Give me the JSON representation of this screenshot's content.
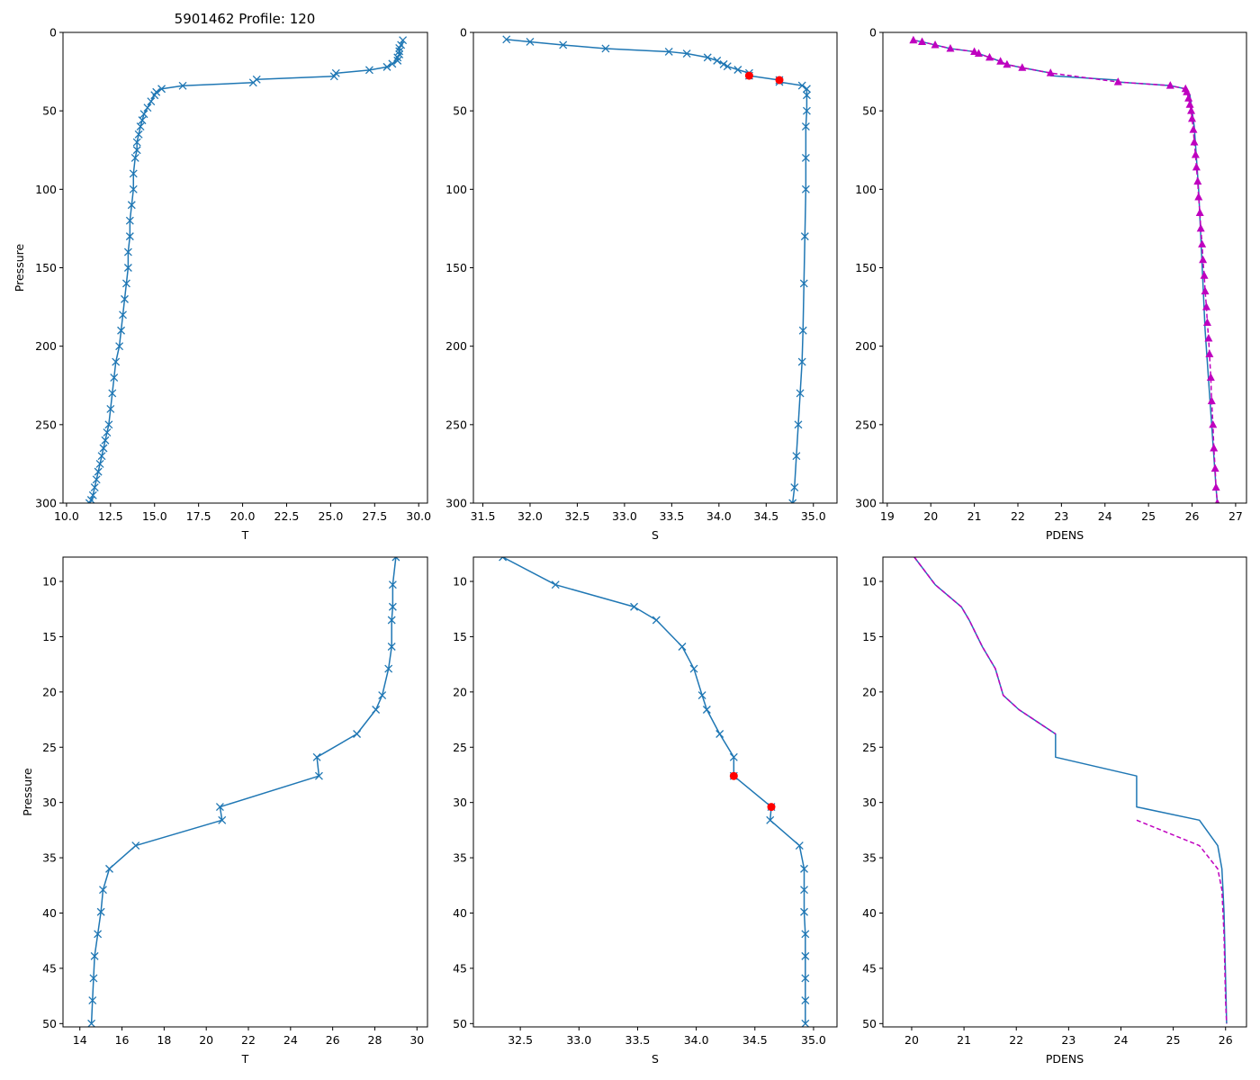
{
  "chart_data": [
    {
      "id": "top-T",
      "type": "line",
      "title": "5901462 Profile: 120",
      "xlabel": "T",
      "ylabel": "Pressure",
      "xlim": [
        9.8,
        30.5
      ],
      "ylim": [
        300,
        0
      ],
      "xticks": [
        10.0,
        12.5,
        15.0,
        17.5,
        20.0,
        22.5,
        25.0,
        27.5,
        30.0
      ],
      "xtick_labels": [
        "10.0",
        "12.5",
        "15.0",
        "17.5",
        "20.0",
        "22.5",
        "25.0",
        "27.5",
        "30.0"
      ],
      "yticks": [
        0,
        50,
        100,
        150,
        200,
        250,
        300
      ],
      "ytick_labels": [
        "0",
        "50",
        "100",
        "150",
        "200",
        "250",
        "300"
      ],
      "series": [
        {
          "name": "T",
          "color": "#1f77b4",
          "marker": "x",
          "dashed": false,
          "marker_color": "#1f77b4",
          "x": [
            29.1,
            29.0,
            28.9,
            28.9,
            28.9,
            28.8,
            28.8,
            28.5,
            28.2,
            27.2,
            25.3,
            25.2,
            20.8,
            20.6,
            16.6,
            15.4,
            15.1,
            15.0,
            14.8,
            14.6,
            14.4,
            14.3,
            14.2,
            14.1,
            14.0,
            14.0,
            13.9,
            13.8,
            13.8,
            13.7,
            13.6,
            13.6,
            13.5,
            13.5,
            13.4,
            13.3,
            13.2,
            13.1,
            13.0,
            12.8,
            12.7,
            12.6,
            12.5,
            12.4,
            12.3,
            12.2,
            12.1,
            12.0,
            11.9,
            11.8,
            11.7,
            11.6,
            11.5,
            11.4,
            11.3
          ],
          "y": [
            5,
            8,
            10,
            12,
            14,
            16,
            18,
            20,
            22,
            24,
            26,
            28,
            30,
            32,
            34,
            36,
            38,
            40,
            44,
            48,
            52,
            56,
            60,
            65,
            70,
            75,
            80,
            90,
            100,
            110,
            120,
            130,
            140,
            150,
            160,
            170,
            180,
            190,
            200,
            210,
            220,
            230,
            240,
            250,
            255,
            260,
            265,
            270,
            275,
            280,
            285,
            290,
            295,
            298,
            300
          ]
        }
      ],
      "points": []
    },
    {
      "id": "top-S",
      "type": "line",
      "title": "",
      "xlabel": "S",
      "ylabel": "",
      "xlim": [
        31.4,
        35.25
      ],
      "ylim": [
        300,
        0
      ],
      "xticks": [
        31.5,
        32.0,
        32.5,
        33.0,
        33.5,
        34.0,
        34.5,
        35.0
      ],
      "xtick_labels": [
        "31.5",
        "32.0",
        "32.5",
        "33.0",
        "33.5",
        "34.0",
        "34.5",
        "35.0"
      ],
      "yticks": [
        0,
        50,
        100,
        150,
        200,
        250,
        300
      ],
      "ytick_labels": [
        "0",
        "50",
        "100",
        "150",
        "200",
        "250",
        "300"
      ],
      "series": [
        {
          "name": "S",
          "color": "#1f77b4",
          "marker": "x",
          "dashed": false,
          "marker_color": "#1f77b4",
          "x": [
            31.75,
            32.0,
            32.35,
            32.8,
            33.47,
            33.66,
            33.88,
            33.98,
            34.05,
            34.09,
            34.2,
            34.32,
            34.32,
            34.64,
            34.64,
            34.88,
            34.93,
            34.93,
            34.93,
            34.92,
            34.92,
            34.92,
            34.91,
            34.9,
            34.89,
            34.88,
            34.86,
            34.84,
            34.82,
            34.8,
            34.78
          ],
          "y": [
            4.5,
            6,
            8,
            10.3,
            12.3,
            13.5,
            16,
            18,
            20.3,
            21.6,
            23.8,
            25.9,
            27.6,
            30.4,
            31.6,
            33.9,
            36,
            40,
            50,
            60,
            80,
            100,
            130,
            160,
            190,
            210,
            230,
            250,
            270,
            290,
            300
          ]
        }
      ],
      "points": [
        {
          "x": 34.32,
          "y": 27.6,
          "color": "#ff0000"
        },
        {
          "x": 34.64,
          "y": 30.4,
          "color": "#ff0000"
        }
      ]
    },
    {
      "id": "top-PDENS",
      "type": "line",
      "title": "",
      "xlabel": "PDENS",
      "ylabel": "",
      "xlim": [
        18.9,
        27.25
      ],
      "ylim": [
        300,
        0
      ],
      "xticks": [
        19,
        20,
        21,
        22,
        23,
        24,
        25,
        26,
        27
      ],
      "xtick_labels": [
        "19",
        "20",
        "21",
        "22",
        "23",
        "24",
        "25",
        "26",
        "27"
      ],
      "yticks": [
        0,
        50,
        100,
        150,
        200,
        250,
        300
      ],
      "ytick_labels": [
        "0",
        "50",
        "100",
        "150",
        "200",
        "250",
        "300"
      ],
      "series": [
        {
          "name": "PDENS",
          "color": "#1f77b4",
          "marker": "",
          "dashed": false,
          "marker_color": "#1f77b4",
          "x": [
            19.6,
            19.8,
            20.1,
            20.45,
            21.0,
            21.1,
            21.35,
            21.6,
            21.75,
            22.1,
            22.75,
            22.75,
            24.3,
            24.3,
            25.5,
            25.85,
            25.95,
            26.0,
            26.05,
            26.1,
            26.15,
            26.2,
            26.25,
            26.3,
            26.35,
            26.4,
            26.45,
            26.5,
            26.55,
            26.58
          ],
          "y": [
            5,
            6,
            8,
            10.3,
            12.3,
            13.5,
            16,
            18.5,
            20.5,
            22.5,
            25.9,
            27.6,
            30.4,
            31.6,
            33.9,
            36,
            40,
            50,
            60,
            80,
            100,
            130,
            160,
            190,
            210,
            230,
            250,
            270,
            290,
            300
          ]
        },
        {
          "name": "PDENS markers",
          "color": "#bf00bf",
          "marker": "^",
          "dashed": true,
          "marker_color": "#bf00bf",
          "x": [
            19.6,
            19.8,
            20.1,
            20.45,
            21.0,
            21.1,
            21.35,
            21.6,
            21.75,
            22.1,
            22.75,
            24.3,
            25.5,
            25.85,
            25.88,
            25.92,
            25.95,
            25.98,
            26.0,
            26.03,
            26.05,
            26.08,
            26.1,
            26.13,
            26.15,
            26.18,
            26.2,
            26.23,
            26.25,
            26.28,
            26.3,
            26.33,
            26.35,
            26.38,
            26.4,
            26.43,
            26.45,
            26.48,
            26.5,
            26.53,
            26.55,
            26.58
          ],
          "y": [
            5,
            6,
            8,
            10.3,
            12.3,
            13.5,
            16,
            18.5,
            20.5,
            22.5,
            25.9,
            31.6,
            33.9,
            36,
            38,
            42,
            46,
            50,
            55,
            62,
            70,
            78,
            86,
            95,
            105,
            115,
            125,
            135,
            145,
            155,
            165,
            175,
            185,
            195,
            205,
            220,
            235,
            250,
            265,
            278,
            290,
            300
          ]
        }
      ],
      "points": []
    },
    {
      "id": "bottom-T",
      "type": "line",
      "title": "",
      "xlabel": "T",
      "ylabel": "Pressure",
      "xlim": [
        13.2,
        30.5
      ],
      "ylim": [
        50.3,
        7.8
      ],
      "xticks": [
        14,
        16,
        18,
        20,
        22,
        24,
        26,
        28,
        30
      ],
      "xtick_labels": [
        "14",
        "16",
        "18",
        "20",
        "22",
        "24",
        "26",
        "28",
        "30"
      ],
      "yticks": [
        10,
        15,
        20,
        25,
        30,
        35,
        40,
        45,
        50
      ],
      "ytick_labels": [
        "10",
        "15",
        "20",
        "25",
        "30",
        "35",
        "40",
        "45",
        "50"
      ],
      "series": [
        {
          "name": "T",
          "color": "#1f77b4",
          "marker": "x",
          "dashed": false,
          "marker_color": "#1f77b4",
          "x": [
            29.0,
            28.85,
            28.85,
            28.8,
            28.8,
            28.65,
            28.35,
            28.05,
            27.15,
            25.25,
            25.35,
            20.65,
            20.75,
            16.65,
            15.4,
            15.1,
            15.0,
            14.85,
            14.7,
            14.65,
            14.6,
            14.55
          ],
          "y": [
            7.8,
            10.3,
            12.3,
            13.5,
            15.9,
            17.9,
            20.3,
            21.6,
            23.8,
            25.9,
            27.6,
            30.4,
            31.6,
            33.9,
            36.0,
            37.9,
            39.9,
            41.9,
            43.9,
            45.9,
            47.9,
            50.0
          ]
        }
      ],
      "points": []
    },
    {
      "id": "bottom-S",
      "type": "line",
      "title": "",
      "xlabel": "S",
      "ylabel": "",
      "xlim": [
        32.1,
        35.2
      ],
      "ylim": [
        50.3,
        7.8
      ],
      "xticks": [
        32.5,
        33.0,
        33.5,
        34.0,
        34.5,
        35.0
      ],
      "xtick_labels": [
        "32.5",
        "33.0",
        "33.5",
        "34.0",
        "34.5",
        "35.0"
      ],
      "yticks": [
        10,
        15,
        20,
        25,
        30,
        35,
        40,
        45,
        50
      ],
      "ytick_labels": [
        "10",
        "15",
        "20",
        "25",
        "30",
        "35",
        "40",
        "45",
        "50"
      ],
      "series": [
        {
          "name": "S",
          "color": "#1f77b4",
          "marker": "x",
          "dashed": false,
          "marker_color": "#1f77b4",
          "x": [
            32.35,
            32.8,
            33.47,
            33.66,
            33.88,
            33.98,
            34.05,
            34.09,
            34.2,
            34.32,
            34.32,
            34.64,
            34.63,
            34.88,
            34.92,
            34.92,
            34.92,
            34.93,
            34.93,
            34.93,
            34.93,
            34.93
          ],
          "y": [
            7.8,
            10.3,
            12.3,
            13.5,
            15.9,
            17.9,
            20.3,
            21.6,
            23.8,
            25.9,
            27.6,
            30.4,
            31.6,
            33.9,
            36.0,
            37.9,
            39.9,
            41.9,
            43.9,
            45.9,
            47.9,
            50.0
          ]
        }
      ],
      "points": [
        {
          "x": 34.32,
          "y": 27.6,
          "color": "#ff0000"
        },
        {
          "x": 34.64,
          "y": 30.4,
          "color": "#ff0000"
        }
      ]
    },
    {
      "id": "bottom-PDENS",
      "type": "line",
      "title": "",
      "xlabel": "PDENS",
      "ylabel": "",
      "xlim": [
        19.45,
        26.4
      ],
      "ylim": [
        50.3,
        7.8
      ],
      "xticks": [
        20,
        21,
        22,
        23,
        24,
        25,
        26
      ],
      "xtick_labels": [
        "20",
        "21",
        "22",
        "23",
        "24",
        "25",
        "26"
      ],
      "yticks": [
        10,
        15,
        20,
        25,
        30,
        35,
        40,
        45,
        50
      ],
      "ytick_labels": [
        "10",
        "15",
        "20",
        "25",
        "30",
        "35",
        "40",
        "45",
        "50"
      ],
      "series": [
        {
          "name": "PDENS",
          "color": "#1f77b4",
          "marker": "",
          "dashed": false,
          "marker_color": "#1f77b4",
          "x": [
            20.05,
            20.45,
            20.95,
            21.1,
            21.35,
            21.6,
            21.75,
            22.05,
            22.75,
            22.75,
            24.3,
            24.3,
            25.5,
            25.85,
            25.93,
            25.95,
            25.97,
            25.98,
            25.99,
            26.0,
            26.01,
            26.02
          ],
          "y": [
            7.8,
            10.3,
            12.3,
            13.5,
            15.9,
            17.9,
            20.3,
            21.6,
            23.8,
            25.9,
            27.6,
            30.4,
            31.6,
            33.9,
            36.0,
            37.9,
            39.9,
            41.9,
            43.9,
            45.9,
            47.9,
            50.0
          ]
        },
        {
          "name": "PDENS dashed",
          "color": "#bf00bf",
          "marker": "",
          "dashed": true,
          "marker_color": "#bf00bf",
          "x": [
            20.05,
            20.45,
            20.95,
            21.1,
            21.35,
            21.6,
            21.75,
            22.05,
            22.75
          ],
          "y": [
            7.8,
            10.3,
            12.3,
            13.5,
            15.9,
            17.9,
            20.3,
            21.6,
            23.8
          ]
        },
        {
          "name": "PDENS dashed lower",
          "color": "#bf00bf",
          "marker": "",
          "dashed": true,
          "marker_color": "#bf00bf",
          "x": [
            24.3,
            25.5,
            25.85,
            25.93,
            25.95,
            25.97,
            25.98,
            25.99,
            26.0,
            26.01,
            26.02
          ],
          "y": [
            31.6,
            33.9,
            36.0,
            37.9,
            39.9,
            41.9,
            43.9,
            45.9,
            47.9,
            49.0,
            50.0
          ]
        }
      ],
      "points": []
    }
  ]
}
